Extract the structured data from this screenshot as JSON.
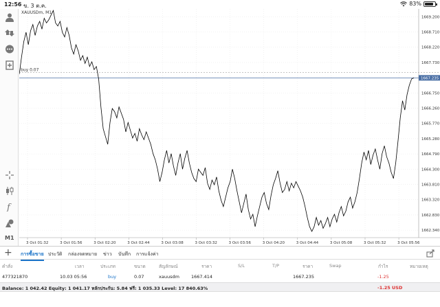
{
  "status_bar": {
    "time": "12:56",
    "date": "ข. 3 ต.ค.",
    "battery": "83%",
    "battery_level": 0.83
  },
  "chart": {
    "symbol_title": "XAUUSDm, M1",
    "position_line_label": "buy 0.07",
    "current_price_label": "1667.235",
    "line_color": "#000000",
    "price_line_color": "#4a6fa5"
  },
  "chart_data": {
    "type": "line",
    "title": "XAUUSDm, M1",
    "xlabel": "",
    "ylabel": "",
    "x_ticks": [
      "3 Oct 01:32",
      "3 Oct 01:56",
      "3 Oct 02:20",
      "3 Oct 02:44",
      "3 Oct 03:08",
      "3 Oct 03:32",
      "3 Oct 03:56",
      "3 Oct 04:20",
      "3 Oct 04:44",
      "3 Oct 05:08",
      "3 Oct 05:32",
      "3 Oct 05:56"
    ],
    "y_ticks": [
      "1669.200",
      "1668.710",
      "1668.220",
      "1667.730",
      "1667.235",
      "1666.750",
      "1666.260",
      "1665.770",
      "1665.280",
      "1664.790",
      "1664.300",
      "1663.810",
      "1663.320",
      "1662.830",
      "1662.340"
    ],
    "ylim": [
      1662.1,
      1669.45
    ],
    "grid": true,
    "position_level": 1667.414,
    "current_price": 1667.235,
    "series": [
      {
        "values": [
          1667.35,
          1667.9,
          1668.4,
          1668.7,
          1668.3,
          1668.75,
          1668.95,
          1668.6,
          1668.9,
          1669.05,
          1668.8,
          1669.15,
          1669.0,
          1669.1,
          1669.25,
          1669.4,
          1669.0,
          1668.9,
          1669.05,
          1668.7,
          1668.55,
          1668.85,
          1668.6,
          1668.2,
          1668.0,
          1668.3,
          1668.1,
          1667.8,
          1667.95,
          1667.7,
          1667.9,
          1667.6,
          1667.75,
          1667.5,
          1667.6,
          1667.2,
          1666.3,
          1665.6,
          1665.35,
          1665.1,
          1665.8,
          1666.25,
          1666.15,
          1665.95,
          1666.3,
          1666.1,
          1665.9,
          1665.5,
          1665.8,
          1665.55,
          1665.3,
          1665.45,
          1665.2,
          1665.6,
          1665.4,
          1665.25,
          1665.5,
          1665.3,
          1665.1,
          1664.8,
          1664.6,
          1664.3,
          1663.9,
          1664.2,
          1664.6,
          1664.9,
          1664.5,
          1664.8,
          1664.4,
          1664.1,
          1664.5,
          1664.8,
          1664.3,
          1664.65,
          1664.9,
          1664.5,
          1664.2,
          1664.0,
          1663.9,
          1664.3,
          1664.2,
          1664.1,
          1664.35,
          1663.85,
          1663.65,
          1663.95,
          1663.8,
          1664.05,
          1663.6,
          1663.3,
          1663.1,
          1663.4,
          1663.7,
          1663.9,
          1664.3,
          1664.0,
          1663.6,
          1663.25,
          1662.9,
          1663.2,
          1663.5,
          1663.0,
          1662.7,
          1662.85,
          1662.45,
          1662.8,
          1663.1,
          1663.4,
          1663.55,
          1663.2,
          1663.0,
          1663.45,
          1663.8,
          1664.0,
          1664.25,
          1663.85,
          1663.55,
          1663.65,
          1663.9,
          1663.6,
          1663.85,
          1663.7,
          1663.9,
          1663.75,
          1663.6,
          1663.4,
          1663.1,
          1662.75,
          1662.45,
          1662.3,
          1662.45,
          1662.75,
          1662.5,
          1662.65,
          1662.4,
          1662.55,
          1662.75,
          1662.45,
          1662.7,
          1662.85,
          1662.6,
          1662.9,
          1663.1,
          1662.8,
          1662.95,
          1663.25,
          1663.4,
          1663.05,
          1663.25,
          1663.55,
          1664.0,
          1664.5,
          1664.85,
          1664.6,
          1664.9,
          1664.45,
          1664.75,
          1664.95,
          1664.6,
          1664.3,
          1664.8,
          1665.05,
          1664.7,
          1664.5,
          1664.2,
          1664.0,
          1664.5,
          1665.2,
          1665.95,
          1666.5,
          1666.2,
          1666.7,
          1667.0,
          1667.2,
          1667.235
        ]
      }
    ]
  },
  "tabs": [
    {
      "label": "การซื้อขาย",
      "active": true
    },
    {
      "label": "ประวัติ",
      "active": false
    },
    {
      "label": "กล่องจดหมาย",
      "active": false
    },
    {
      "label": "ข่าว",
      "active": false
    },
    {
      "label": "บันทึก",
      "active": false
    },
    {
      "label": "การแจ้งค่า",
      "active": false
    }
  ],
  "table": {
    "headers": [
      "คำสั่ง",
      "เวลา",
      "ประเภท",
      "ขนาด",
      "สัญลักษณ์",
      "ราคา",
      "S/L",
      "T/P",
      "ราคา",
      "Swap",
      "กำไร",
      "หมายเหตุ"
    ],
    "row": {
      "order": "477321870",
      "time": "10.03 05:56",
      "type": "buy",
      "size": "0.07",
      "symbol": "xauusdm",
      "open_price": "1667.414",
      "current_price": "1667.235",
      "profit": "-1.25"
    },
    "balance_text": "Balance: 1 042.42 Equity: 1 041.17 หลักประกัน: 5.84 ฟรี: 1 035.33 Level: 17 840.63%",
    "total_profit": "-1.25",
    "currency": "USD"
  },
  "toolbar": {
    "timeframe": "M1"
  }
}
